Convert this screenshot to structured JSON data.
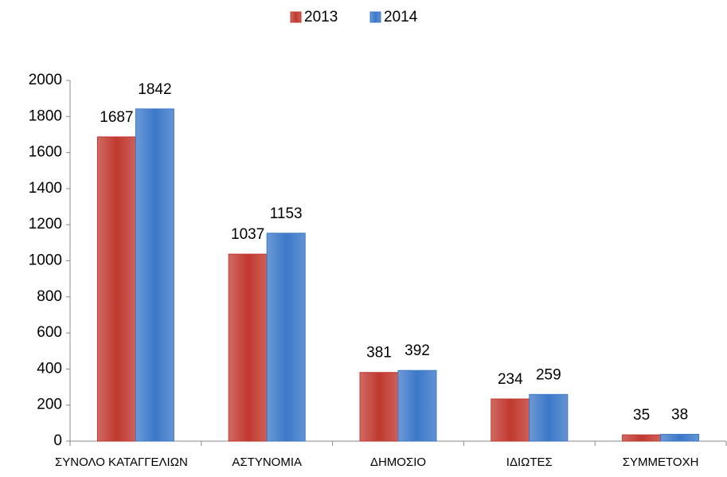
{
  "chart_data": {
    "type": "bar",
    "categories": [
      "ΣΥΝΟΛΟ ΚΑΤΑΓΓΕΛΙΩΝ",
      "ΑΣΤΥΝΟΜΙΑ",
      "ΔΗΜΟΣΙΟ",
      "ΙΔΙΩΤΕΣ",
      "ΣΥΜΜΕΤΟΧΗ"
    ],
    "series": [
      {
        "name": "2013",
        "color": "#c0392f",
        "values": [
          1687,
          1037,
          381,
          234,
          35
        ]
      },
      {
        "name": "2014",
        "color": "#3c78c8",
        "values": [
          1842,
          1153,
          392,
          259,
          38
        ]
      }
    ],
    "ylim": [
      0,
      2000
    ],
    "yticks": [
      0,
      200,
      400,
      600,
      800,
      1000,
      1200,
      1400,
      1600,
      1800,
      2000
    ],
    "grid": false,
    "legend": "top"
  }
}
